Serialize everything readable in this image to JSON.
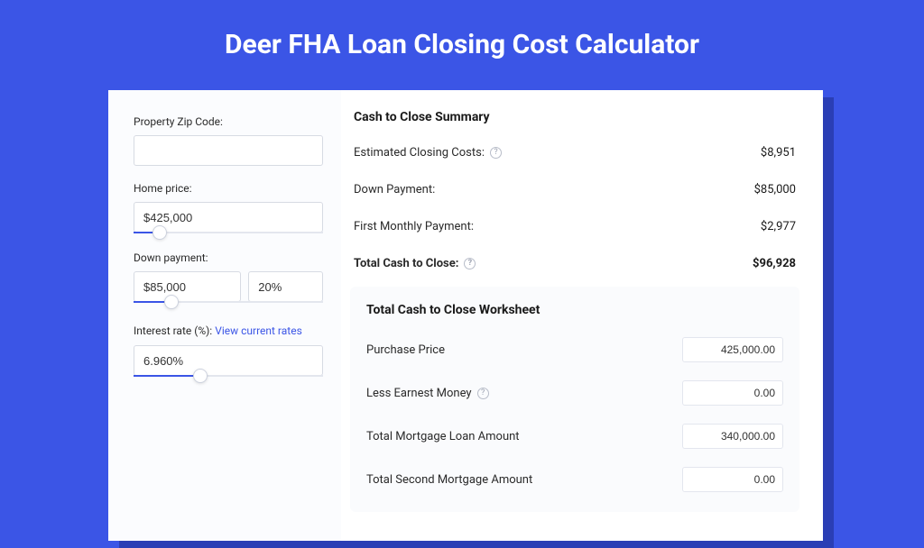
{
  "page": {
    "title": "Deer FHA Loan Closing Cost Calculator",
    "bg_color": "#3b55e6",
    "card_bg": "#ffffff",
    "shadow_color": "#2a3eb5"
  },
  "form": {
    "zip": {
      "label": "Property Zip Code:",
      "value": ""
    },
    "home_price": {
      "label": "Home price:",
      "value": "$425,000",
      "slider_pct": 14
    },
    "down_payment": {
      "label": "Down payment:",
      "value": "$85,000",
      "pct": "20%",
      "slider_pct": 20
    },
    "interest": {
      "label": "Interest rate (%):",
      "link_text": "View current rates",
      "value": "6.960%",
      "slider_pct": 35
    }
  },
  "summary": {
    "title": "Cash to Close Summary",
    "rows": [
      {
        "label": "Estimated Closing Costs:",
        "has_help": true,
        "value": "$8,951"
      },
      {
        "label": "Down Payment:",
        "has_help": false,
        "value": "$85,000"
      },
      {
        "label": "First Monthly Payment:",
        "has_help": false,
        "value": "$2,977"
      }
    ],
    "total": {
      "label": "Total Cash to Close:",
      "has_help": true,
      "value": "$96,928"
    }
  },
  "worksheet": {
    "title": "Total Cash to Close Worksheet",
    "rows": [
      {
        "label": "Purchase Price",
        "has_help": false,
        "value": "425,000.00"
      },
      {
        "label": "Less Earnest Money",
        "has_help": true,
        "value": "0.00"
      },
      {
        "label": "Total Mortgage Loan Amount",
        "has_help": false,
        "value": "340,000.00"
      },
      {
        "label": "Total Second Mortgage Amount",
        "has_help": false,
        "value": "0.00"
      }
    ]
  }
}
